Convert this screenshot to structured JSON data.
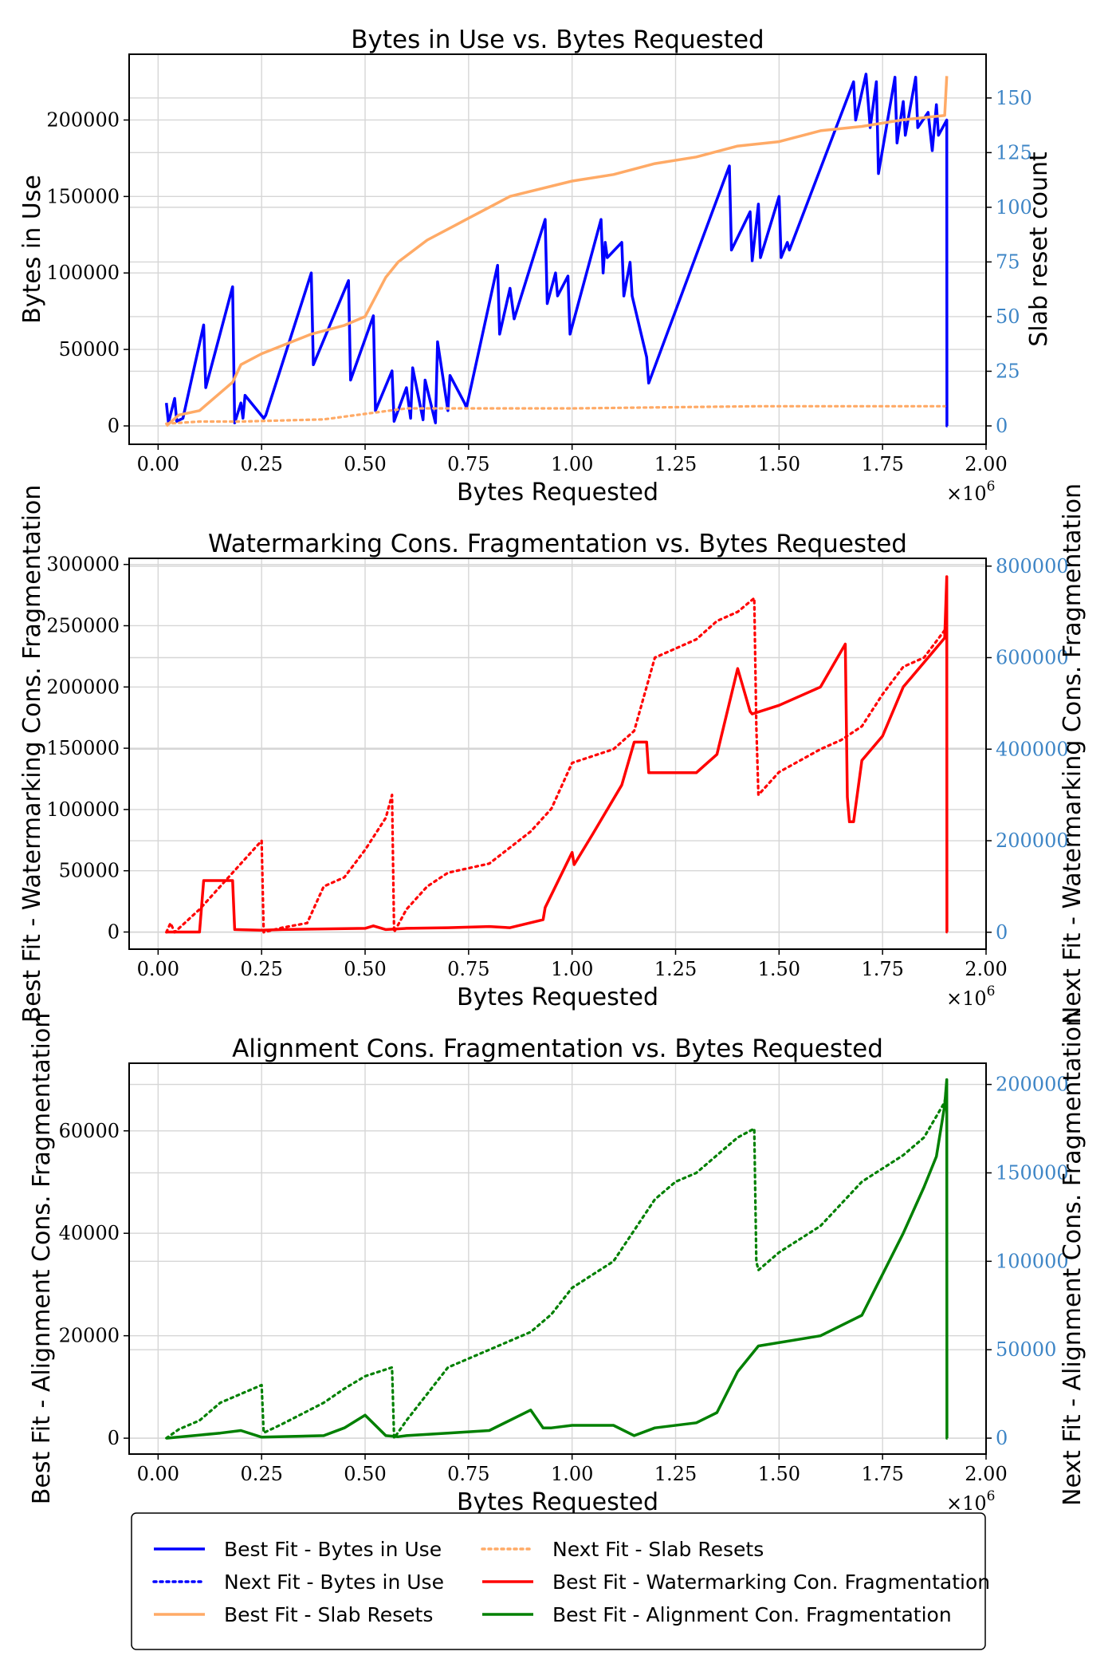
{
  "colors": {
    "blue": "#0000ff",
    "orange": "#ffaa66",
    "red": "#ff0000",
    "green": "#008000",
    "right_tick": "#3d85c6"
  },
  "legend": {
    "items": [
      {
        "label": "Best Fit - Bytes in Use",
        "color": "#0000ff",
        "style": "solid"
      },
      {
        "label": "Next Fit - Bytes in Use",
        "color": "#0000ff",
        "style": "dotted"
      },
      {
        "label": "Best Fit - Slab Resets",
        "color": "#ffaa66",
        "style": "solid"
      },
      {
        "label": "Next Fit - Slab Resets",
        "color": "#ffaa66",
        "style": "dotted"
      },
      {
        "label": "Best Fit - Watermarking Con. Fragmentation",
        "color": "#ff0000",
        "style": "solid"
      },
      {
        "label": "Best Fit - Alignment Con. Fragmentation",
        "color": "#008000",
        "style": "solid"
      }
    ]
  },
  "chart_data": [
    {
      "type": "line",
      "title": "Bytes in Use vs. Bytes Requested",
      "xlabel": "Bytes Requested",
      "x_multiplier": "×10^6",
      "ylabel": "Bytes in Use",
      "ylabel_right": "Slab reset count",
      "xlim": [
        -0.07,
        2.0
      ],
      "ylim": [
        -12000,
        243000
      ],
      "ylim_right": [
        -8.4,
        170
      ],
      "xticks": [
        "0.00",
        "0.25",
        "0.50",
        "0.75",
        "1.00",
        "1.25",
        "1.50",
        "1.75",
        "2.00"
      ],
      "yticks": [
        "0",
        "50000",
        "100000",
        "150000",
        "200000"
      ],
      "yticks_right": [
        "0",
        "25",
        "50",
        "75",
        "100",
        "125",
        "150"
      ],
      "series": [
        {
          "name": "Best Fit - Bytes in Use",
          "axis": "left",
          "color": "#0000ff",
          "style": "solid",
          "x": [
            0.02,
            0.025,
            0.04,
            0.045,
            0.06,
            0.11,
            0.115,
            0.18,
            0.185,
            0.2,
            0.205,
            0.21,
            0.255,
            0.26,
            0.37,
            0.375,
            0.46,
            0.465,
            0.52,
            0.525,
            0.565,
            0.57,
            0.6,
            0.61,
            0.615,
            0.64,
            0.645,
            0.67,
            0.675,
            0.7,
            0.705,
            0.74,
            0.745,
            0.82,
            0.825,
            0.85,
            0.86,
            0.935,
            0.94,
            0.96,
            0.965,
            0.99,
            0.995,
            1.07,
            1.075,
            1.08,
            1.085,
            1.12,
            1.125,
            1.14,
            1.145,
            1.18,
            1.185,
            1.38,
            1.385,
            1.43,
            1.435,
            1.45,
            1.455,
            1.5,
            1.505,
            1.52,
            1.525,
            1.68,
            1.685,
            1.71,
            1.72,
            1.735,
            1.74,
            1.78,
            1.785,
            1.8,
            1.805,
            1.83,
            1.835,
            1.86,
            1.87,
            1.88,
            1.885,
            1.905,
            1.9055,
            1.907
          ],
          "y": [
            15000,
            2000,
            18000,
            3000,
            5000,
            66000,
            25000,
            91000,
            2000,
            15000,
            5000,
            20000,
            5000,
            7000,
            100000,
            40000,
            95000,
            30000,
            72000,
            10000,
            36000,
            3000,
            25000,
            5000,
            38000,
            4000,
            30000,
            2000,
            55000,
            10000,
            33000,
            15000,
            12000,
            105000,
            60000,
            90000,
            70000,
            135000,
            80000,
            100000,
            85000,
            98000,
            60000,
            135000,
            100000,
            120000,
            110000,
            120000,
            85000,
            107000,
            85000,
            45000,
            28000,
            170000,
            115000,
            140000,
            108000,
            145000,
            110000,
            150000,
            110000,
            120000,
            115000,
            225000,
            200000,
            230000,
            195000,
            225000,
            165000,
            228000,
            185000,
            212000,
            190000,
            228000,
            195000,
            205000,
            180000,
            210000,
            190000,
            200000,
            0,
            0
          ]
        },
        {
          "name": "Best Fit - Slab Resets",
          "axis": "right",
          "color": "#ffaa66",
          "style": "solid",
          "x": [
            0.02,
            0.05,
            0.1,
            0.18,
            0.2,
            0.25,
            0.37,
            0.45,
            0.5,
            0.55,
            0.58,
            0.65,
            0.72,
            0.75,
            0.8,
            0.85,
            1.0,
            1.1,
            1.2,
            1.3,
            1.4,
            1.5,
            1.6,
            1.7,
            1.8,
            1.9,
            1.905
          ],
          "y": [
            0,
            5,
            7,
            20,
            28,
            33,
            42,
            46,
            50,
            68,
            75,
            85,
            92,
            95,
            100,
            105,
            112,
            115,
            120,
            123,
            128,
            130,
            135,
            137,
            140,
            142,
            160
          ]
        },
        {
          "name": "Next Fit - Slab Resets",
          "axis": "right",
          "color": "#ffaa66",
          "style": "dotted",
          "x": [
            0.02,
            0.1,
            0.2,
            0.4,
            0.6,
            1.0,
            1.45,
            1.9
          ],
          "y": [
            1,
            2,
            2,
            3,
            8,
            8,
            9,
            9
          ]
        }
      ]
    },
    {
      "type": "line",
      "title": "Watermarking Cons. Fragmentation vs. Bytes Requested",
      "xlabel": "Bytes Requested",
      "x_multiplier": "×10^6",
      "ylabel": "Best Fit - Watermarking Cons. Fragmentation",
      "ylabel_right": "Next Fit - Watermarking Cons. Fragmentation",
      "xlim": [
        -0.07,
        2.0
      ],
      "ylim": [
        -14000,
        305000
      ],
      "ylim_right": [
        -37000,
        817000
      ],
      "xticks": [
        "0.00",
        "0.25",
        "0.50",
        "0.75",
        "1.00",
        "1.25",
        "1.50",
        "1.75",
        "2.00"
      ],
      "yticks": [
        "0",
        "50000",
        "100000",
        "150000",
        "200000",
        "250000",
        "300000"
      ],
      "yticks_right": [
        "0",
        "200000",
        "400000",
        "600000",
        "800000"
      ],
      "series": [
        {
          "name": "Best Fit - Watermarking Con. Fragmentation",
          "axis": "left",
          "color": "#ff0000",
          "style": "solid",
          "x": [
            0.02,
            0.1,
            0.11,
            0.18,
            0.185,
            0.25,
            0.3,
            0.5,
            0.52,
            0.55,
            0.6,
            0.7,
            0.8,
            0.85,
            0.93,
            0.935,
            1.0,
            1.005,
            1.05,
            1.12,
            1.15,
            1.18,
            1.185,
            1.3,
            1.35,
            1.4,
            1.43,
            1.435,
            1.5,
            1.6,
            1.66,
            1.665,
            1.67,
            1.68,
            1.7,
            1.75,
            1.8,
            1.85,
            1.9,
            1.905,
            1.9055,
            1.907
          ],
          "y": [
            0,
            0,
            42000,
            42000,
            2000,
            1500,
            2000,
            3000,
            5000,
            2000,
            3000,
            3500,
            4500,
            3500,
            10000,
            20000,
            65000,
            55000,
            80000,
            120000,
            155000,
            155000,
            130000,
            130000,
            145000,
            215000,
            180000,
            178000,
            185000,
            200000,
            235000,
            110000,
            90000,
            90000,
            140000,
            160000,
            200000,
            220000,
            240000,
            290000,
            0,
            0
          ]
        },
        {
          "name": "Next Fit - Watermarking Cons. Fragmentation",
          "axis": "right",
          "color": "#ff0000",
          "style": "dotted",
          "x": [
            0.02,
            0.03,
            0.04,
            0.1,
            0.2,
            0.25,
            0.255,
            0.3,
            0.36,
            0.4,
            0.45,
            0.5,
            0.55,
            0.565,
            0.57,
            0.6,
            0.65,
            0.7,
            0.8,
            0.9,
            0.95,
            1.0,
            1.1,
            1.15,
            1.2,
            1.3,
            1.35,
            1.4,
            1.44,
            1.445,
            1.45,
            1.5,
            1.6,
            1.65,
            1.7,
            1.75,
            1.8,
            1.85,
            1.9,
            1.905
          ],
          "y": [
            0,
            20000,
            0,
            50000,
            150000,
            200000,
            0,
            10000,
            20000,
            100000,
            120000,
            180000,
            250000,
            300000,
            0,
            50000,
            100000,
            130000,
            150000,
            220000,
            270000,
            370000,
            400000,
            440000,
            600000,
            640000,
            680000,
            700000,
            730000,
            450000,
            300000,
            350000,
            400000,
            420000,
            450000,
            520000,
            580000,
            600000,
            660000,
            680000
          ]
        }
      ]
    },
    {
      "type": "line",
      "title": "Alignment Cons. Fragmentation vs. Bytes Requested",
      "xlabel": "Bytes Requested",
      "x_multiplier": "×10^6",
      "ylabel": "Best Fit - Alignment Cons. Fragmentation",
      "ylabel_right": "Next Fit - Alignment Cons. Fragmentation",
      "xlim": [
        -0.07,
        2.0
      ],
      "ylim": [
        -3100,
        73200
      ],
      "ylim_right": [
        -9000,
        212000
      ],
      "xticks": [
        "0.00",
        "0.25",
        "0.50",
        "0.75",
        "1.00",
        "1.25",
        "1.50",
        "1.75",
        "2.00"
      ],
      "yticks": [
        "0",
        "20000",
        "40000",
        "60000"
      ],
      "yticks_right": [
        "0",
        "50000",
        "100000",
        "150000",
        "200000"
      ],
      "series": [
        {
          "name": "Best Fit - Alignment Con. Fragmentation",
          "axis": "left",
          "color": "#008000",
          "style": "solid",
          "x": [
            0.02,
            0.15,
            0.2,
            0.25,
            0.4,
            0.45,
            0.5,
            0.55,
            0.58,
            0.6,
            0.7,
            0.8,
            0.9,
            0.93,
            0.95,
            1.0,
            1.1,
            1.15,
            1.2,
            1.3,
            1.35,
            1.4,
            1.45,
            1.6,
            1.7,
            1.75,
            1.8,
            1.85,
            1.88,
            1.9,
            1.905,
            1.9055,
            1.907
          ],
          "y": [
            0,
            1000,
            1500,
            200,
            500,
            2000,
            4500,
            500,
            300,
            500,
            1000,
            1500,
            5500,
            2000,
            2000,
            2500,
            2500,
            500,
            2000,
            3000,
            5000,
            13000,
            18000,
            20000,
            24000,
            32000,
            40000,
            49000,
            55000,
            65000,
            70000,
            0,
            0
          ]
        },
        {
          "name": "Next Fit - Alignment Cons. Fragmentation",
          "axis": "right",
          "color": "#008000",
          "style": "dotted",
          "x": [
            0.02,
            0.05,
            0.1,
            0.15,
            0.2,
            0.25,
            0.255,
            0.3,
            0.4,
            0.45,
            0.5,
            0.565,
            0.57,
            0.6,
            0.7,
            0.8,
            0.9,
            0.95,
            1.0,
            1.1,
            1.2,
            1.25,
            1.3,
            1.4,
            1.44,
            1.445,
            1.45,
            1.5,
            1.6,
            1.7,
            1.8,
            1.85,
            1.9,
            1.905
          ],
          "y": [
            0,
            5000,
            10000,
            20000,
            25000,
            30000,
            3000,
            8000,
            20000,
            28000,
            35000,
            40000,
            0,
            10000,
            40000,
            50000,
            60000,
            70000,
            85000,
            100000,
            135000,
            145000,
            150000,
            170000,
            175000,
            100000,
            95000,
            105000,
            120000,
            145000,
            160000,
            170000,
            190000,
            200000
          ]
        }
      ]
    }
  ]
}
